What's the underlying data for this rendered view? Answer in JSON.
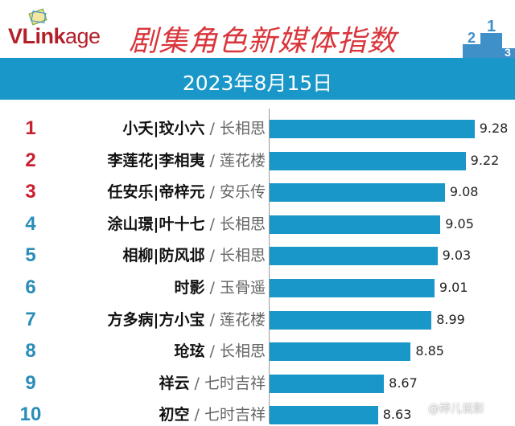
{
  "header": {
    "logo": "VLinkage",
    "logo_bold": "VLink",
    "logo_light": "age",
    "title": "剧集角色新媒体指数",
    "date": "2023年8月15日",
    "podium_numbers": [
      "2",
      "1",
      "3"
    ]
  },
  "colors": {
    "bar": "#1a97c9",
    "rank_top": "#c8202e",
    "rank_other": "#2a8db8",
    "title": "#d9353b"
  },
  "chart_data": {
    "type": "bar",
    "orientation": "horizontal",
    "title": "剧集角色新媒体指数",
    "subtitle": "2023年8月15日",
    "categories": [
      "小夭|玟小六 / 长相思",
      "李莲花|李相夷 / 莲花楼",
      "任安乐|帝梓元 / 安乐传",
      "涂山璟|叶十七 / 长相思",
      "相柳|防风邶 / 长相思",
      "时影 / 玉骨遥",
      "方多病|方小宝 / 莲花楼",
      "玱玹 / 长相思",
      "祥云 / 七时吉祥",
      "初空 / 七时吉祥"
    ],
    "rows": [
      {
        "rank": "1",
        "name": "小夭|玟小六",
        "drama": "长相思",
        "value": 9.28
      },
      {
        "rank": "2",
        "name": "李莲花|李相夷",
        "drama": "莲花楼",
        "value": 9.22
      },
      {
        "rank": "3",
        "name": "任安乐|帝梓元",
        "drama": "安乐传",
        "value": 9.08
      },
      {
        "rank": "4",
        "name": "涂山璟|叶十七",
        "drama": "长相思",
        "value": 9.05
      },
      {
        "rank": "5",
        "name": "相柳|防风邶",
        "drama": "长相思",
        "value": 9.03
      },
      {
        "rank": "6",
        "name": "时影",
        "drama": "玉骨遥",
        "value": 9.01
      },
      {
        "rank": "7",
        "name": "方多病|方小宝",
        "drama": "莲花楼",
        "value": 8.99
      },
      {
        "rank": "8",
        "name": "玱玹",
        "drama": "长相思",
        "value": 8.85
      },
      {
        "rank": "9",
        "name": "祥云",
        "drama": "七时吉祥",
        "value": 8.67
      },
      {
        "rank": "10",
        "name": "初空",
        "drama": "七时吉祥",
        "value": 8.63
      }
    ],
    "values": [
      9.28,
      9.22,
      9.08,
      9.05,
      9.03,
      9.01,
      8.99,
      8.85,
      8.67,
      8.63
    ],
    "xlim": [
      7.9,
      9.4
    ],
    "grid": false,
    "legend": "none"
  },
  "watermark": "@婷儿说影"
}
